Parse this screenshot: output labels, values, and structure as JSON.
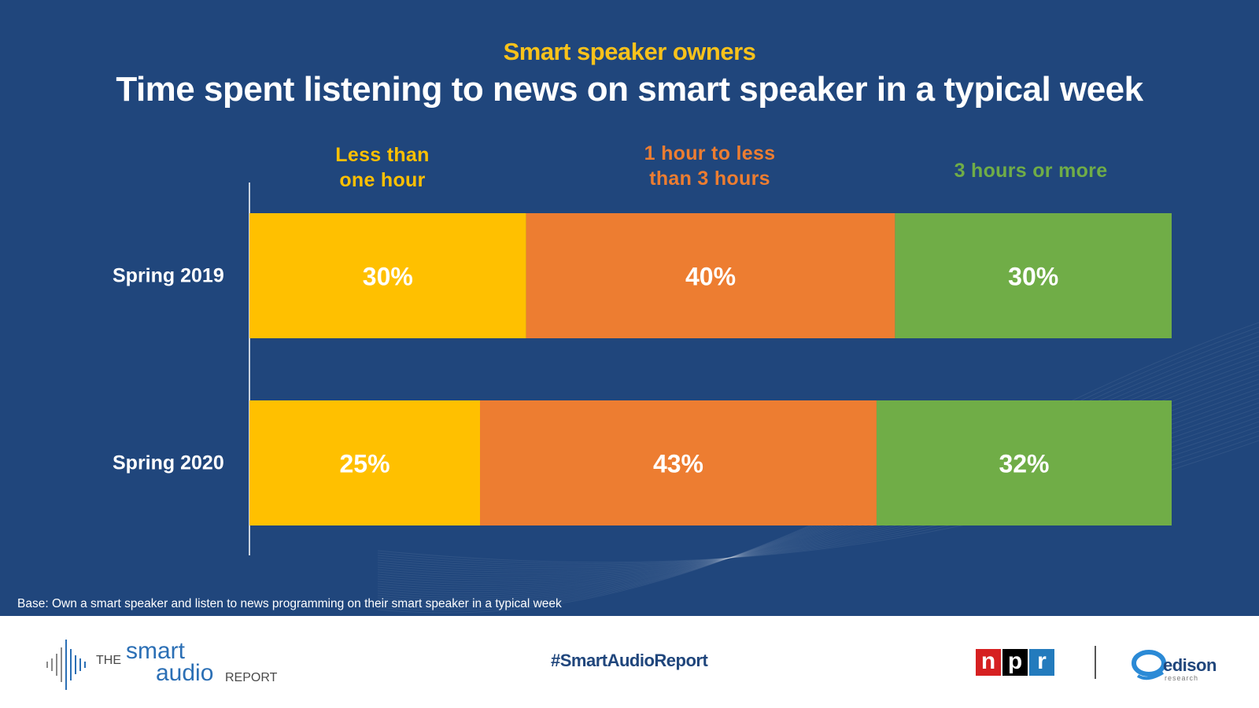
{
  "subtitle": "Smart speaker owners",
  "title": "Time spent listening to news on smart speaker in a typical week",
  "colors": {
    "background": "#20467c",
    "less_than_one_hour": "#ffc000",
    "one_to_three_hours": "#ed7d31",
    "three_plus_hours": "#70ad47",
    "text": "#ffffff"
  },
  "footnote": "Base: Own a smart speaker and listen to news programming on their smart speaker in a typical week",
  "footer": {
    "logo_left": {
      "the": "THE",
      "smart": "smart",
      "audio": "audio",
      "report": "REPORT"
    },
    "hashtag": "#SmartAudioReport",
    "npr_letters": [
      "n",
      "p",
      "r"
    ],
    "edison": {
      "word": "edison",
      "sub": "research"
    }
  },
  "chart_data": {
    "type": "bar",
    "orientation": "horizontal",
    "stacked": true,
    "percent_stacked": true,
    "categories": [
      "Spring 2019",
      "Spring 2020"
    ],
    "series": [
      {
        "name": "Less than\none hour",
        "values": [
          30,
          25
        ],
        "labels": [
          "30%",
          "25%"
        ],
        "color": "#ffc000"
      },
      {
        "name": "1 hour to less\nthan 3 hours",
        "values": [
          40,
          43
        ],
        "labels": [
          "40%",
          "43%"
        ],
        "color": "#ed7d31"
      },
      {
        "name": "3 hours or more",
        "values": [
          30,
          32
        ],
        "labels": [
          "30%",
          "32%"
        ],
        "color": "#70ad47"
      }
    ],
    "xlim": [
      0,
      100
    ],
    "legend_position": "top",
    "grid": false
  }
}
